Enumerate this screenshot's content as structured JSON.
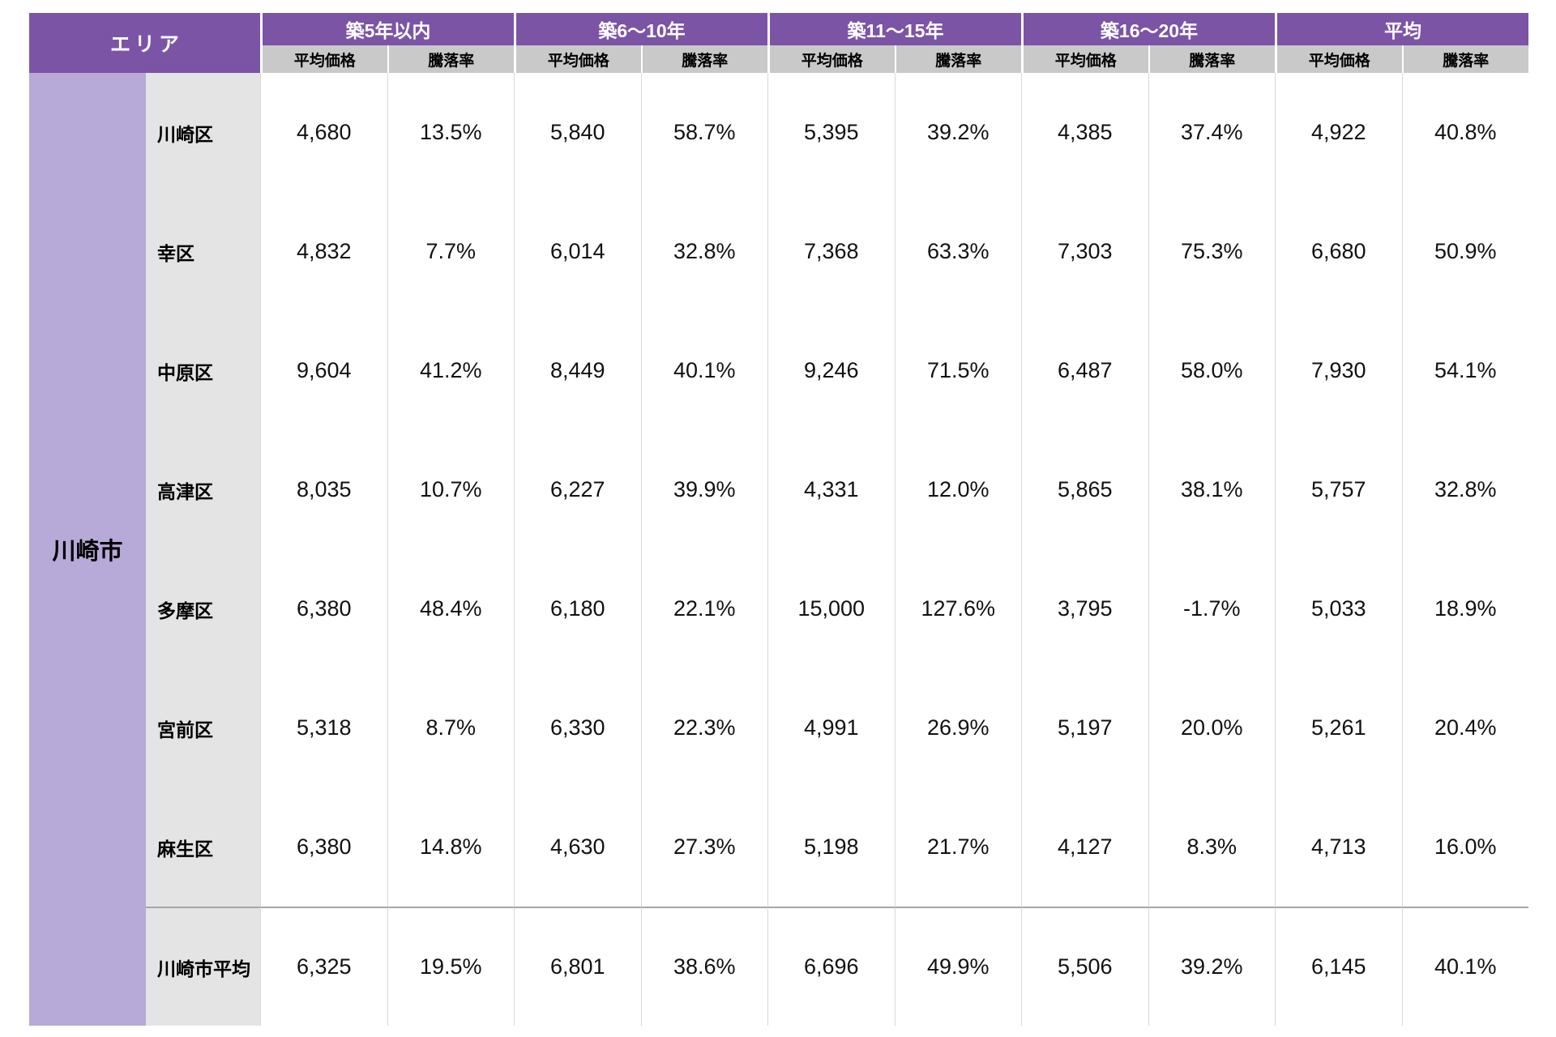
{
  "table": {
    "area_header": "エリア",
    "city": "川崎市",
    "groups": [
      {
        "label": "築5年以内"
      },
      {
        "label": "築6〜10年"
      },
      {
        "label": "築11〜15年"
      },
      {
        "label": "築16〜20年"
      },
      {
        "label": "平均"
      }
    ],
    "sub_headers": {
      "price": "平均価格",
      "rate": "騰落率"
    },
    "rows": [
      {
        "district": "川崎区",
        "is_summary": false,
        "values": [
          "4,680",
          "13.5%",
          "5,840",
          "58.7%",
          "5,395",
          "39.2%",
          "4,385",
          "37.4%",
          "4,922",
          "40.8%"
        ]
      },
      {
        "district": "幸区",
        "is_summary": false,
        "values": [
          "4,832",
          "7.7%",
          "6,014",
          "32.8%",
          "7,368",
          "63.3%",
          "7,303",
          "75.3%",
          "6,680",
          "50.9%"
        ]
      },
      {
        "district": "中原区",
        "is_summary": false,
        "values": [
          "9,604",
          "41.2%",
          "8,449",
          "40.1%",
          "9,246",
          "71.5%",
          "6,487",
          "58.0%",
          "7,930",
          "54.1%"
        ]
      },
      {
        "district": "高津区",
        "is_summary": false,
        "values": [
          "8,035",
          "10.7%",
          "6,227",
          "39.9%",
          "4,331",
          "12.0%",
          "5,865",
          "38.1%",
          "5,757",
          "32.8%"
        ]
      },
      {
        "district": "多摩区",
        "is_summary": false,
        "values": [
          "6,380",
          "48.4%",
          "6,180",
          "22.1%",
          "15,000",
          "127.6%",
          "3,795",
          "-1.7%",
          "5,033",
          "18.9%"
        ]
      },
      {
        "district": "宮前区",
        "is_summary": false,
        "values": [
          "5,318",
          "8.7%",
          "6,330",
          "22.3%",
          "4,991",
          "26.9%",
          "5,197",
          "20.0%",
          "5,261",
          "20.4%"
        ]
      },
      {
        "district": "麻生区",
        "is_summary": false,
        "values": [
          "6,380",
          "14.8%",
          "4,630",
          "27.3%",
          "5,198",
          "21.7%",
          "4,127",
          "8.3%",
          "4,713",
          "16.0%"
        ]
      },
      {
        "district": "川崎市平均",
        "is_summary": true,
        "values": [
          "6,325",
          "19.5%",
          "6,801",
          "38.6%",
          "6,696",
          "49.9%",
          "5,506",
          "39.2%",
          "6,145",
          "40.1%"
        ]
      }
    ],
    "colors": {
      "header_purple": "#7B54A6",
      "body_purple": "#B7A9D8",
      "subheader_gray": "#C9C9C9",
      "district_gray": "#E4E4E4",
      "cell_border": "#D9D9D9",
      "summary_separator": "#A6A6A6"
    }
  },
  "chart_data": {
    "type": "table",
    "title": "",
    "row_header": "エリア",
    "area_group": "川崎市",
    "column_groups": [
      "築5年以内",
      "築6〜10年",
      "築11〜15年",
      "築16〜20年",
      "平均"
    ],
    "sub_columns": [
      "平均価格",
      "騰落率"
    ],
    "value_column_order": [
      "築5年以内 平均価格",
      "築5年以内 騰落率",
      "築6〜10年 平均価格",
      "築6〜10年 騰落率",
      "築11〜15年 平均価格",
      "築11〜15年 騰落率",
      "築16〜20年 平均価格",
      "築16〜20年 騰落率",
      "平均 平均価格",
      "平均 騰落率"
    ],
    "rates_unit": "%",
    "rows": [
      {
        "district": "川崎区",
        "values": [
          4680,
          13.5,
          5840,
          58.7,
          5395,
          39.2,
          4385,
          37.4,
          4922,
          40.8
        ]
      },
      {
        "district": "幸区",
        "values": [
          4832,
          7.7,
          6014,
          32.8,
          7368,
          63.3,
          7303,
          75.3,
          6680,
          50.9
        ]
      },
      {
        "district": "中原区",
        "values": [
          9604,
          41.2,
          8449,
          40.1,
          9246,
          71.5,
          6487,
          58.0,
          7930,
          54.1
        ]
      },
      {
        "district": "高津区",
        "values": [
          8035,
          10.7,
          6227,
          39.9,
          4331,
          12.0,
          5865,
          38.1,
          5757,
          32.8
        ]
      },
      {
        "district": "多摩区",
        "values": [
          6380,
          48.4,
          6180,
          22.1,
          15000,
          127.6,
          3795,
          -1.7,
          5033,
          18.9
        ]
      },
      {
        "district": "宮前区",
        "values": [
          5318,
          8.7,
          6330,
          22.3,
          4991,
          26.9,
          5197,
          20.0,
          5261,
          20.4
        ]
      },
      {
        "district": "麻生区",
        "values": [
          6380,
          14.8,
          4630,
          27.3,
          5198,
          21.7,
          4127,
          8.3,
          4713,
          16.0
        ]
      },
      {
        "district": "川崎市平均",
        "values": [
          6325,
          19.5,
          6801,
          38.6,
          6696,
          49.9,
          5506,
          39.2,
          6145,
          40.1
        ]
      }
    ]
  }
}
